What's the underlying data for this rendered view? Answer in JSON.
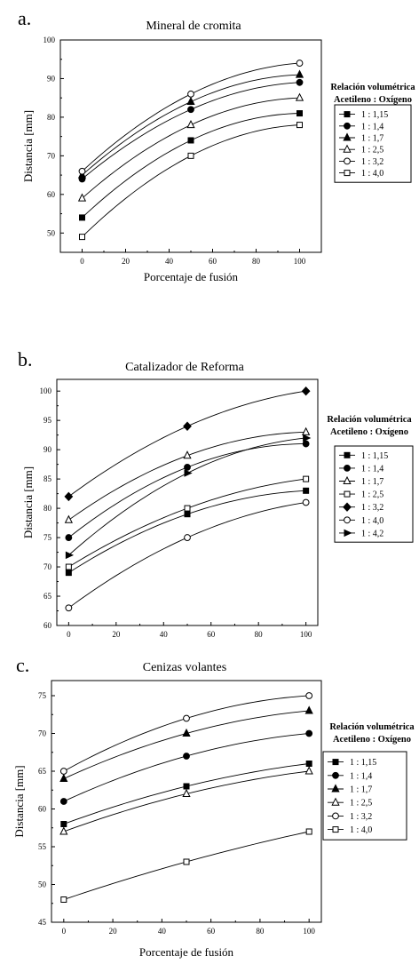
{
  "panels": [
    {
      "letter": "a.",
      "title": "Mineral de cromita"
    },
    {
      "letter": "b.",
      "title": "Catalizador de Reforma"
    },
    {
      "letter": "c.",
      "title": "Cenizas volantes"
    }
  ],
  "chart_data": [
    {
      "type": "line",
      "title": "Mineral de cromita",
      "xlabel": "Porcentaje de fusión",
      "ylabel": "Distancia [mm]",
      "xlim": [
        -10,
        110
      ],
      "ylim": [
        45,
        100
      ],
      "xticks": [
        0,
        20,
        40,
        60,
        80,
        100
      ],
      "yticks": [
        50,
        60,
        70,
        80,
        90,
        100
      ],
      "x": [
        0,
        50,
        100
      ],
      "legend_title": [
        "Relación volumétrica",
        "Acetileno : Oxígeno"
      ],
      "legend_position": "right",
      "series": [
        {
          "name": "1 : 1,15",
          "marker": "square-filled",
          "values": [
            54,
            74,
            81
          ]
        },
        {
          "name": "1 : 1,4",
          "marker": "circle-filled",
          "values": [
            64,
            82,
            89
          ]
        },
        {
          "name": "1 : 1,7",
          "marker": "triangle-filled",
          "values": [
            65,
            84,
            91
          ]
        },
        {
          "name": "1 : 2,5",
          "marker": "triangle-open",
          "values": [
            59,
            78,
            85
          ]
        },
        {
          "name": "1 : 3,2",
          "marker": "circle-open",
          "values": [
            66,
            86,
            94
          ]
        },
        {
          "name": "1 : 4,0",
          "marker": "square-open",
          "values": [
            49,
            70,
            78
          ]
        }
      ]
    },
    {
      "type": "line",
      "title": "Catalizador de Reforma",
      "xlabel": "",
      "ylabel": "Distancia [mm]",
      "xlim": [
        -5,
        105
      ],
      "ylim": [
        60,
        102
      ],
      "xticks": [
        0,
        20,
        40,
        60,
        80,
        100
      ],
      "yticks": [
        60,
        65,
        70,
        75,
        80,
        85,
        90,
        95,
        100
      ],
      "x": [
        0,
        50,
        100
      ],
      "legend_title": [
        "Relación volumétrica",
        "Acetileno : Oxígeno"
      ],
      "legend_position": "right",
      "series": [
        {
          "name": "1 : 1,15",
          "marker": "square-filled",
          "values": [
            69,
            79,
            83
          ]
        },
        {
          "name": "1 : 1,4",
          "marker": "circle-filled",
          "values": [
            75,
            87,
            91
          ]
        },
        {
          "name": "1 : 1,7",
          "marker": "triangle-open",
          "values": [
            78,
            89,
            93
          ]
        },
        {
          "name": "1 : 2,5",
          "marker": "square-open",
          "values": [
            70,
            80,
            85
          ]
        },
        {
          "name": "1 : 3,2",
          "marker": "diamond-filled",
          "values": [
            82,
            94,
            100
          ]
        },
        {
          "name": "1 : 4,0",
          "marker": "circle-open",
          "values": [
            63,
            75,
            81
          ]
        },
        {
          "name": "1 : 4,2",
          "marker": "triangle-right-filled",
          "values": [
            72,
            86,
            92
          ]
        }
      ]
    },
    {
      "type": "line",
      "title": "Cenizas volantes",
      "xlabel": "Porcentaje de fusión",
      "ylabel": "Distancia [mm]",
      "xlim": [
        -5,
        105
      ],
      "ylim": [
        45,
        77
      ],
      "xticks": [
        0,
        20,
        40,
        60,
        80,
        100
      ],
      "yticks": [
        45,
        50,
        55,
        60,
        65,
        70,
        75
      ],
      "x": [
        0,
        50,
        100
      ],
      "legend_title": [
        "Relación volumétrica",
        "Acetileno : Oxígeno"
      ],
      "legend_position": "right",
      "series": [
        {
          "name": "1 : 1,15",
          "marker": "square-filled",
          "values": [
            58,
            63,
            66
          ]
        },
        {
          "name": "1 : 1,4",
          "marker": "circle-filled",
          "values": [
            61,
            67,
            70
          ]
        },
        {
          "name": "1 : 1,7",
          "marker": "triangle-filled",
          "values": [
            64,
            70,
            73
          ]
        },
        {
          "name": "1 : 2,5",
          "marker": "triangle-open",
          "values": [
            57,
            62,
            65
          ]
        },
        {
          "name": "1 : 3,2",
          "marker": "circle-open",
          "values": [
            65,
            72,
            75
          ]
        },
        {
          "name": "1 : 4,0",
          "marker": "square-open",
          "values": [
            48,
            53,
            57
          ]
        }
      ]
    }
  ]
}
